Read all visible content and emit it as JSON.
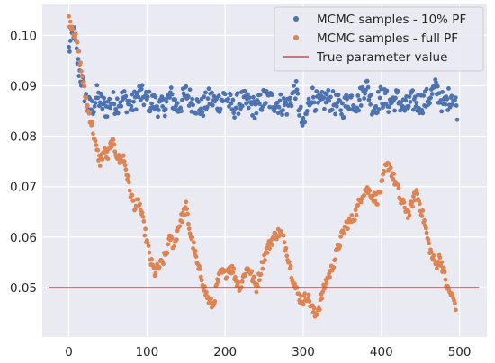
{
  "chart_data": {
    "type": "scatter",
    "title": "",
    "xlabel": "",
    "ylabel": "",
    "xlim": [
      -34,
      535
    ],
    "ylim": [
      0.0402,
      0.1063
    ],
    "xticks": [
      0,
      100,
      200,
      300,
      400,
      500
    ],
    "yticks": [
      0.05,
      0.06,
      0.07,
      0.08,
      0.09,
      0.1
    ],
    "grid": true,
    "background": "#eaeaf2",
    "legend_position": "top-right",
    "series": [
      {
        "name": "MCMC samples - 10% PF",
        "kind": "points",
        "color": "#4c72b0",
        "x": [
          0,
          6,
          12,
          18,
          24,
          30,
          36,
          42,
          48,
          54,
          60,
          70,
          80,
          90,
          100,
          110,
          120,
          130,
          140,
          150,
          160,
          170,
          180,
          190,
          200,
          210,
          220,
          230,
          240,
          250,
          260,
          270,
          280,
          290,
          300,
          310,
          320,
          330,
          340,
          350,
          360,
          370,
          380,
          390,
          400,
          410,
          420,
          430,
          440,
          450,
          460,
          470,
          480,
          490,
          497
        ],
        "y": [
          0.097,
          0.101,
          0.094,
          0.09,
          0.086,
          0.0855,
          0.088,
          0.0865,
          0.0855,
          0.087,
          0.0865,
          0.0875,
          0.086,
          0.0885,
          0.087,
          0.0865,
          0.0855,
          0.088,
          0.0855,
          0.0885,
          0.0865,
          0.0855,
          0.0875,
          0.0865,
          0.088,
          0.0855,
          0.087,
          0.0865,
          0.0855,
          0.0875,
          0.087,
          0.0865,
          0.086,
          0.0895,
          0.0815,
          0.0885,
          0.086,
          0.0875,
          0.0865,
          0.0855,
          0.0875,
          0.0865,
          0.0905,
          0.0855,
          0.088,
          0.0865,
          0.0875,
          0.0855,
          0.087,
          0.0865,
          0.0875,
          0.0895,
          0.086,
          0.0885,
          0.0855
        ]
      },
      {
        "name": "MCMC samples - full PF",
        "kind": "points",
        "color": "#dd8452",
        "x": [
          0,
          4,
          8,
          12,
          16,
          20,
          25,
          30,
          35,
          40,
          45,
          50,
          55,
          60,
          65,
          70,
          75,
          80,
          85,
          90,
          95,
          100,
          105,
          110,
          115,
          120,
          125,
          130,
          135,
          140,
          145,
          150,
          155,
          160,
          165,
          170,
          175,
          180,
          185,
          190,
          195,
          200,
          205,
          210,
          215,
          220,
          225,
          230,
          235,
          240,
          245,
          250,
          255,
          260,
          265,
          270,
          275,
          280,
          285,
          290,
          295,
          300,
          305,
          310,
          315,
          320,
          325,
          330,
          335,
          340,
          345,
          350,
          355,
          360,
          365,
          370,
          375,
          380,
          385,
          390,
          395,
          400,
          405,
          410,
          415,
          420,
          425,
          430,
          435,
          440,
          445,
          450,
          455,
          460,
          465,
          470,
          475,
          480,
          485,
          490,
          495
        ],
        "y": [
          0.103,
          0.102,
          0.1,
          0.097,
          0.093,
          0.089,
          0.085,
          0.082,
          0.0775,
          0.075,
          0.077,
          0.076,
          0.079,
          0.077,
          0.075,
          0.076,
          0.072,
          0.068,
          0.066,
          0.067,
          0.063,
          0.059,
          0.055,
          0.053,
          0.054,
          0.055,
          0.057,
          0.06,
          0.058,
          0.062,
          0.064,
          0.066,
          0.061,
          0.058,
          0.054,
          0.052,
          0.049,
          0.047,
          0.0465,
          0.051,
          0.053,
          0.0525,
          0.054,
          0.0535,
          0.051,
          0.05,
          0.053,
          0.054,
          0.052,
          0.05,
          0.053,
          0.056,
          0.058,
          0.0595,
          0.0605,
          0.061,
          0.0595,
          0.0565,
          0.053,
          0.05,
          0.048,
          0.0475,
          0.0485,
          0.0465,
          0.0445,
          0.046,
          0.049,
          0.0515,
          0.053,
          0.0555,
          0.058,
          0.0605,
          0.0625,
          0.063,
          0.064,
          0.066,
          0.0685,
          0.0695,
          0.069,
          0.068,
          0.0675,
          0.07,
          0.0735,
          0.0745,
          0.072,
          0.07,
          0.067,
          0.066,
          0.0645,
          0.067,
          0.069,
          0.066,
          0.063,
          0.059,
          0.056,
          0.0545,
          0.056,
          0.053,
          0.0495,
          0.0485,
          0.0465
        ]
      },
      {
        "name": "True parameter value",
        "kind": "line",
        "color": "#c44e52",
        "x": [
          -25,
          525
        ],
        "y": [
          0.05,
          0.05
        ]
      }
    ]
  }
}
